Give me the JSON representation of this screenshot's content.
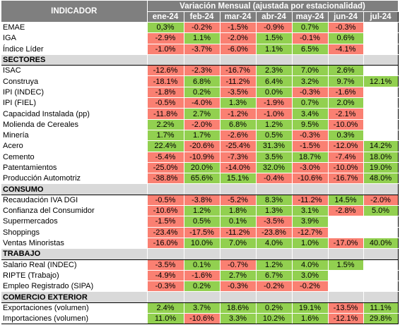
{
  "header": {
    "indicador_label": "INDICADOR",
    "group_label": "Variación Mensual (ajustada por estacionalidad)",
    "months": [
      "ene-24",
      "feb-24",
      "mar-24",
      "abr-24",
      "may-24",
      "jun-24",
      "jul-24"
    ]
  },
  "colors": {
    "header_bg": "#7f7f7f",
    "section_bg": "#d9d9d9",
    "positive": "#92d050",
    "negative": "#fa8072"
  },
  "rows": [
    {
      "name": "EMAE",
      "values": [
        "0,3%",
        "-0.2%",
        "-1.5%",
        "-0.9%",
        "0.7%",
        "-0.3%",
        ""
      ],
      "colors": [
        "g",
        "r",
        "r",
        "r",
        "g",
        "r",
        "e"
      ]
    },
    {
      "name": "IGA",
      "values": [
        "-2.9%",
        "1.1%",
        "-2.0%",
        "1.5%",
        "-0.1%",
        "0.6%",
        ""
      ],
      "colors": [
        "r",
        "g",
        "r",
        "g",
        "r",
        "g",
        "e"
      ]
    },
    {
      "name": "Índice Líder",
      "values": [
        "-1.0%",
        "-3.7%",
        "-6.0%",
        "1.1%",
        "6.5%",
        "-4.1%",
        ""
      ],
      "colors": [
        "r",
        "r",
        "r",
        "g",
        "g",
        "r",
        "e"
      ]
    },
    {
      "section": "SECTORES"
    },
    {
      "name": "ISAC",
      "values": [
        "-12.6%",
        "-2.3%",
        "-16.7%",
        "2.3%",
        "7.0%",
        "2.6%",
        ""
      ],
      "colors": [
        "r",
        "r",
        "r",
        "g",
        "g",
        "g",
        "e"
      ]
    },
    {
      "name": "Construya",
      "values": [
        "-18.1%",
        "6.8%",
        "-11.2%",
        "6.4%",
        "3.2%",
        "9.7%",
        "12.1%"
      ],
      "colors": [
        "r",
        "g",
        "r",
        "g",
        "g",
        "g",
        "g"
      ]
    },
    {
      "name": "IPI (INDEC)",
      "values": [
        "-1.8%",
        "0.2%",
        "-3.5%",
        "0.0%",
        "-0.3%",
        "-1.6%",
        ""
      ],
      "colors": [
        "r",
        "g",
        "r",
        "g",
        "r",
        "r",
        "e"
      ]
    },
    {
      "name": "IPI (FIEL)",
      "values": [
        "-0.5%",
        "-4.0%",
        "1.3%",
        "-1.9%",
        "0.7%",
        "2.0%",
        ""
      ],
      "colors": [
        "r",
        "r",
        "g",
        "r",
        "g",
        "g",
        "e"
      ]
    },
    {
      "name": "Capacidad Instalada (pp)",
      "values": [
        "-11.8%",
        "2.7%",
        "-1.2%",
        "-1.0%",
        "3.4%",
        "-2.1%",
        ""
      ],
      "colors": [
        "r",
        "g",
        "r",
        "r",
        "g",
        "r",
        "e"
      ]
    },
    {
      "name": "Molienda de Cereales",
      "values": [
        "2.2%",
        "-2.0%",
        "6.8%",
        "1.2%",
        "9.5%",
        "-10.0%",
        ""
      ],
      "colors": [
        "g",
        "r",
        "g",
        "g",
        "g",
        "r",
        "e"
      ]
    },
    {
      "name": "Minería",
      "values": [
        "1.7%",
        "1.7%",
        "-2.6%",
        "0.5%",
        "-0.3%",
        "0.3%",
        ""
      ],
      "colors": [
        "g",
        "g",
        "r",
        "g",
        "r",
        "g",
        "e"
      ]
    },
    {
      "name": "Acero",
      "values": [
        "22.4%",
        "-20.6%",
        "-25.4%",
        "31.3%",
        "-1.5%",
        "-12.0%",
        "14.2%"
      ],
      "colors": [
        "g",
        "r",
        "r",
        "g",
        "r",
        "r",
        "g"
      ]
    },
    {
      "name": "Cemento",
      "values": [
        "-5.4%",
        "-10.9%",
        "-7.3%",
        "3.5%",
        "18.7%",
        "-7.4%",
        "18.0%"
      ],
      "colors": [
        "r",
        "r",
        "r",
        "g",
        "g",
        "r",
        "g"
      ]
    },
    {
      "name": "Patentamientos",
      "values": [
        "-25.0%",
        "20.0%",
        "-14.0%",
        "32.0%",
        "-3.0%",
        "-10.0%",
        "19.0%"
      ],
      "colors": [
        "r",
        "g",
        "r",
        "g",
        "r",
        "r",
        "g"
      ]
    },
    {
      "name": "Producción Automotriz",
      "values": [
        "-38.8%",
        "65.6%",
        "15.1%",
        "-0.4%",
        "-10.6%",
        "-16.7%",
        "48.0%"
      ],
      "colors": [
        "r",
        "g",
        "g",
        "r",
        "r",
        "r",
        "g"
      ]
    },
    {
      "section": "CONSUMO"
    },
    {
      "name": "Recaudación IVA DGI",
      "values": [
        "-0.5%",
        "-3.8%",
        "-5.2%",
        "8.3%",
        "-11.2%",
        "14.5%",
        "-2.0%"
      ],
      "colors": [
        "r",
        "r",
        "r",
        "g",
        "r",
        "g",
        "r"
      ]
    },
    {
      "name": "Confianza del Consumidor",
      "values": [
        "-10.6%",
        "1.2%",
        "1.8%",
        "1.3%",
        "3.1%",
        "-2.8%",
        "5.0%"
      ],
      "colors": [
        "r",
        "g",
        "g",
        "g",
        "g",
        "r",
        "g"
      ]
    },
    {
      "name": "Supermercados",
      "values": [
        "-1.5%",
        "0.5%",
        "0.1%",
        "-3.5%",
        "3.9%",
        "",
        ""
      ],
      "colors": [
        "r",
        "g",
        "g",
        "r",
        "g",
        "e",
        "e"
      ]
    },
    {
      "name": "Shoppings",
      "values": [
        "-23.4%",
        "-17.5%",
        "-11.2%",
        "-23.8%",
        "-12.7%",
        "",
        ""
      ],
      "colors": [
        "r",
        "r",
        "r",
        "r",
        "r",
        "e",
        "e"
      ]
    },
    {
      "name": "Ventas Minoristas",
      "values": [
        "-16.0%",
        "10.0%",
        "7.0%",
        "4.0%",
        "1.0%",
        "-17.0%",
        "40.0%"
      ],
      "colors": [
        "r",
        "g",
        "g",
        "g",
        "g",
        "r",
        "g"
      ]
    },
    {
      "section": "TRABAJO"
    },
    {
      "name": "Salario Real (INDEC)",
      "values": [
        "-3.5%",
        "0.1%",
        "-0.7%",
        "1.2%",
        "4.0%",
        "1.5%",
        ""
      ],
      "colors": [
        "r",
        "g",
        "r",
        "g",
        "g",
        "g",
        "e"
      ]
    },
    {
      "name": "RIPTE (Trabajo)",
      "values": [
        "-4.9%",
        "-1.6%",
        "2.7%",
        "6.7%",
        "3.0%",
        "",
        ""
      ],
      "colors": [
        "r",
        "r",
        "g",
        "g",
        "g",
        "e",
        "e"
      ]
    },
    {
      "name": "Empleo Registrado (SIPA)",
      "values": [
        "-0.3%",
        "0.2%",
        "-0.3%",
        "-0.2%",
        "-0.2%",
        "",
        ""
      ],
      "colors": [
        "r",
        "g",
        "r",
        "r",
        "r",
        "e",
        "e"
      ]
    },
    {
      "section": "COMERCIO EXTERIOR"
    },
    {
      "name": "Exportaciones (volumen)",
      "values": [
        "2.4%",
        "3.7%",
        "18.6%",
        "0.2%",
        "19.1%",
        "-13.5%",
        "11.1%"
      ],
      "colors": [
        "g",
        "g",
        "g",
        "g",
        "g",
        "r",
        "g"
      ]
    },
    {
      "name": "Importaciones (volumen)",
      "values": [
        "11.0%",
        "-10.6%",
        "3.3%",
        "10.2%",
        "1.6%",
        "-12.1%",
        "29.8%"
      ],
      "colors": [
        "g",
        "r",
        "g",
        "g",
        "g",
        "r",
        "g"
      ]
    }
  ]
}
